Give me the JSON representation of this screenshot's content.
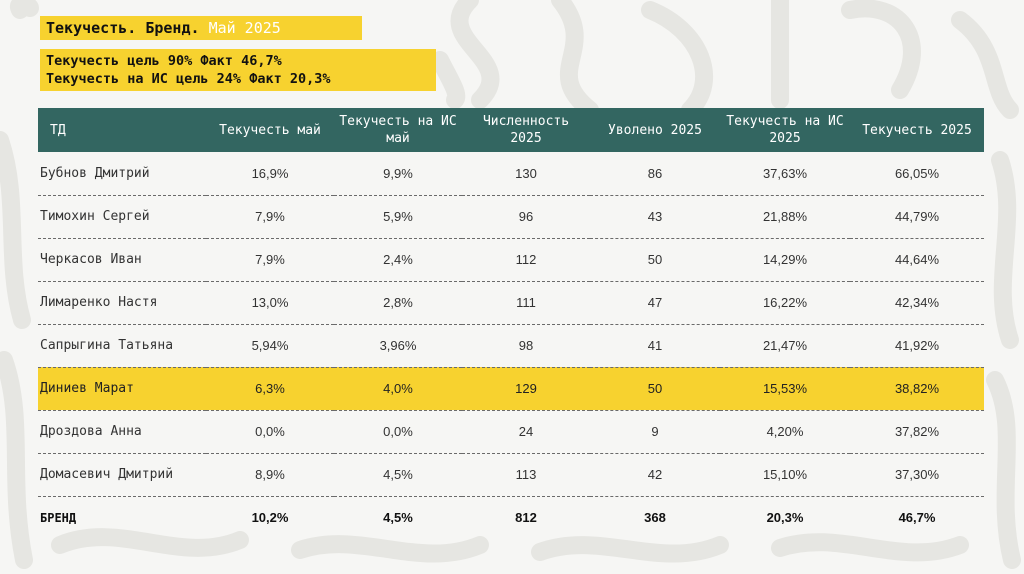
{
  "header": {
    "title_prefix": "Текучесть. Бренд.",
    "title_month": "Май 2025",
    "target_line_1": "Текучесть цель 90% Факт 46,7%",
    "target_line_2": "Текучесть на ИС цель 24% Факт 20,3%"
  },
  "table": {
    "columns": [
      "ТД",
      "Текучесть май",
      "Текучесть на ИС май",
      "Численность 2025",
      "Уволено 2025",
      "Текучесть на ИС 2025",
      "Текучесть 2025"
    ],
    "rows": [
      [
        "Бубнов Дмитрий",
        "16,9%",
        "9,9%",
        "130",
        "86",
        "37,63%",
        "66,05%"
      ],
      [
        "Тимохин Сергей",
        "7,9%",
        "5,9%",
        "96",
        "43",
        "21,88%",
        "44,79%"
      ],
      [
        "Черкасов Иван",
        "7,9%",
        "2,4%",
        "112",
        "50",
        "14,29%",
        "44,64%"
      ],
      [
        "Лимаренко Настя",
        "13,0%",
        "2,8%",
        "111",
        "47",
        "16,22%",
        "42,34%"
      ],
      [
        "Сапрыгина Татьяна",
        "5,94%",
        "3,96%",
        "98",
        "41",
        "21,47%",
        "41,92%"
      ],
      [
        "Диниев Марат",
        "6,3%",
        "4,0%",
        "129",
        "50",
        "15,53%",
        "38,82%"
      ],
      [
        "Дроздова Анна",
        "0,0%",
        "0,0%",
        "24",
        "9",
        "4,20%",
        "37,82%"
      ],
      [
        "Домасевич Дмитрий",
        "8,9%",
        "4,5%",
        "113",
        "42",
        "15,10%",
        "37,30%"
      ],
      [
        "БРЕНД",
        "10,2%",
        "4,5%",
        "812",
        "368",
        "20,3%",
        "46,7%"
      ]
    ]
  },
  "colors": {
    "accent_yellow": "#f7d22f",
    "header_teal": "#336661",
    "background": "#f6f6f4"
  }
}
